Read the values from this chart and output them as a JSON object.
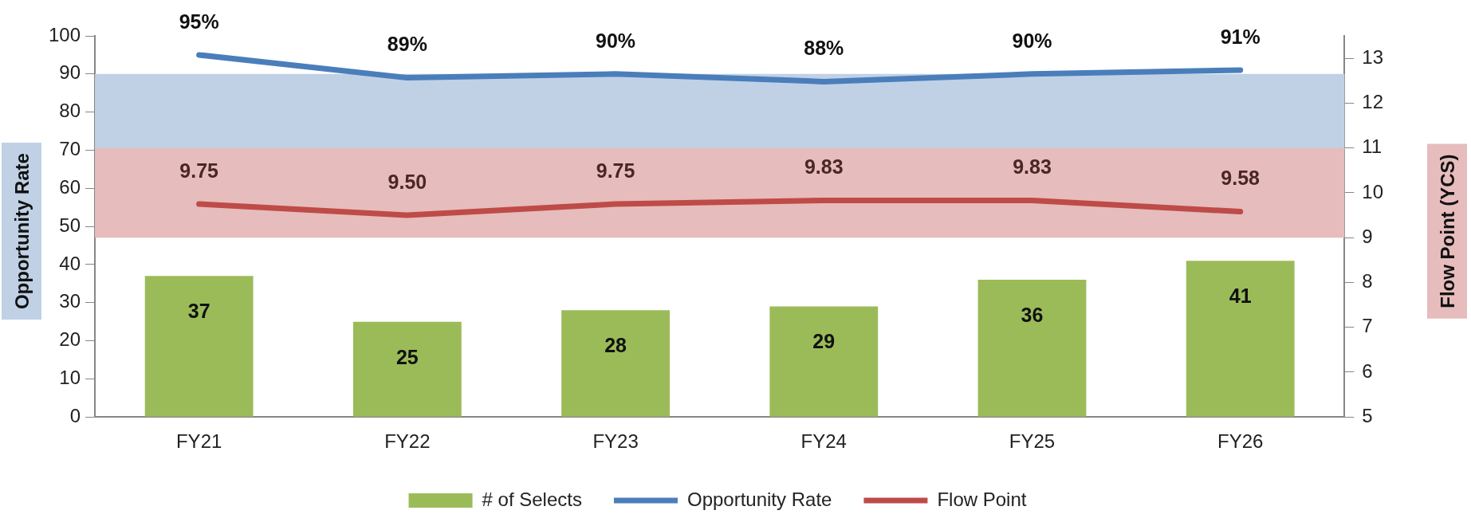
{
  "chart_data": {
    "type": "bar",
    "categories": [
      "FY21",
      "FY22",
      "FY23",
      "FY24",
      "FY25",
      "FY26"
    ],
    "series": [
      {
        "name": "# of Selects",
        "color": "#9bbb59",
        "values": [
          37,
          25,
          28,
          29,
          36,
          41
        ],
        "value_labels": [
          "37",
          "25",
          "28",
          "29",
          "36",
          "41"
        ]
      },
      {
        "name": "Opportunity Rate",
        "type": "line",
        "color": "#4a7ebb",
        "values": [
          95,
          89,
          90,
          88,
          90,
          91
        ],
        "value_labels": [
          "95%",
          "89%",
          "90%",
          "88%",
          "90%",
          "91%"
        ]
      },
      {
        "name": "Flow Point",
        "type": "line",
        "axis": "y2",
        "color": "#be4b48",
        "values": [
          9.75,
          9.5,
          9.75,
          9.83,
          9.83,
          9.58
        ],
        "value_labels": [
          "9.75",
          "9.50",
          "9.75",
          "9.83",
          "9.83",
          "9.58"
        ]
      }
    ],
    "ylabel": "Opportunity Rate",
    "y2label": "Flow Point (YCS)",
    "ylim": [
      0,
      100
    ],
    "yticks": [
      0,
      10,
      20,
      30,
      40,
      50,
      60,
      70,
      80,
      90,
      100
    ],
    "y2lim": [
      5,
      13.5
    ],
    "y2ticks": [
      5,
      6,
      7,
      8,
      9,
      10,
      11,
      12,
      13
    ],
    "bands": [
      {
        "axis": "y",
        "from": 70,
        "to": 90,
        "color": "#c0d1e6"
      },
      {
        "axis": "y2",
        "from": 9,
        "to": 11,
        "color": "#e6bcbc"
      }
    ],
    "legend": "bottom"
  }
}
